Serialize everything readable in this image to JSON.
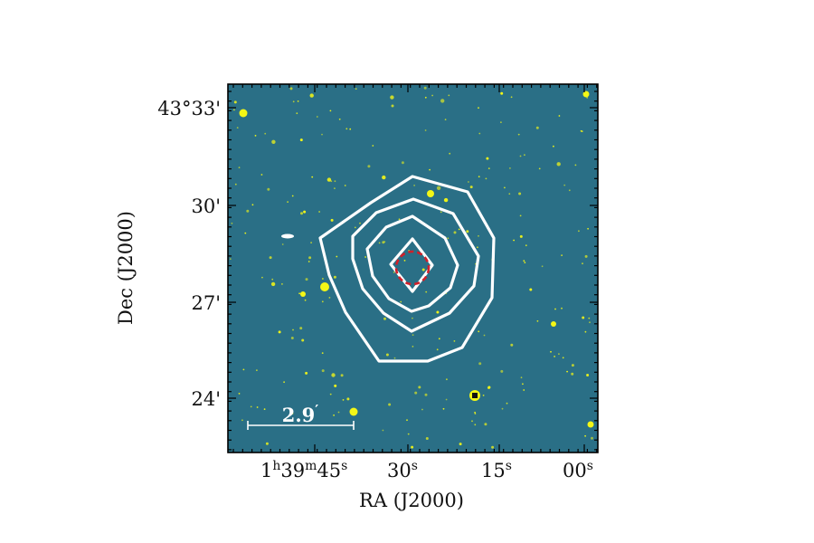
{
  "image": {
    "background_color": "#2a6f86",
    "star_color": "#f4f716",
    "contour_color": "#ffffff",
    "marker_color": "#d0202a",
    "frame_color": "#000000"
  },
  "axes": {
    "x_title": "RA (J2000)",
    "y_title": "Dec (J2000)",
    "ra_ticks": [
      {
        "hours": "1",
        "minutes": "39",
        "seconds": "45"
      },
      {
        "seconds": "30"
      },
      {
        "seconds": "15"
      },
      {
        "seconds": "00"
      }
    ],
    "dec_ticks": [
      "43°33'",
      "30'",
      "27'",
      "24'"
    ]
  },
  "scale_bar": {
    "label": "2.9",
    "unit": "′"
  },
  "contours": {
    "count": 4
  },
  "marker": {
    "style": "dashed-circle"
  }
}
